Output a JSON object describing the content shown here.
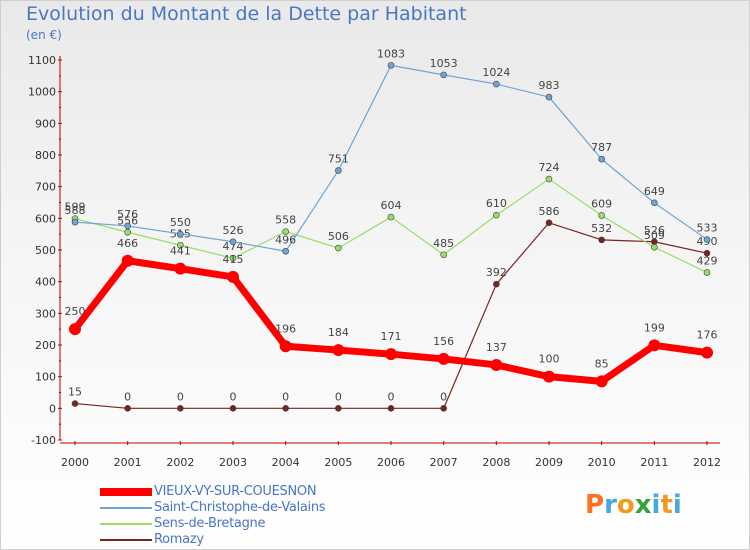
{
  "chart_data": {
    "type": "line",
    "title": "Evolution du Montant de la Dette par Habitant",
    "subtitle": "(en €)",
    "xlabel": "",
    "ylabel": "",
    "x": [
      "2000",
      "2001",
      "2002",
      "2003",
      "2004",
      "2005",
      "2006",
      "2007",
      "2008",
      "2009",
      "2010",
      "2011",
      "2012"
    ],
    "ylim": [
      -100,
      1100
    ],
    "yticks": [
      -100,
      0,
      100,
      200,
      300,
      400,
      500,
      600,
      700,
      800,
      900,
      1000,
      1100
    ],
    "grid": false,
    "legend": "bottom-left",
    "series": [
      {
        "name": "VIEUX-VY-SUR-COUESNON",
        "color": "#ff0000",
        "values": [
          250,
          466,
          441,
          415,
          196,
          184,
          171,
          156,
          137,
          100,
          85,
          199,
          176
        ]
      },
      {
        "name": "Saint-Christophe-de-Valains",
        "color": "#6fa3d6",
        "values": [
          588,
          576,
          null,
          526,
          496,
          751,
          1083,
          1053,
          1024,
          983,
          787,
          649,
          533
        ]
      },
      {
        "name": "Sens-de-Bretagne",
        "color": "#99dd66",
        "values": [
          599,
          556,
          515,
          474,
          558,
          506,
          604,
          485,
          610,
          724,
          609,
          509,
          429
        ]
      },
      {
        "name": "Romazy",
        "color": "#7a2222",
        "values": [
          15,
          0,
          0,
          0,
          0,
          0,
          0,
          0,
          392,
          586,
          532,
          526,
          490
        ]
      }
    ],
    "extra_points": [
      {
        "series": "Saint-Christophe-de-Valains",
        "x": "2002",
        "value": 550
      }
    ]
  },
  "logo": {
    "letters": [
      "P",
      "r",
      "o",
      "x",
      "i",
      "t",
      "i"
    ],
    "colors": [
      "#ff6f1f",
      "#46a8e0",
      "#f39a1e",
      "#35a33a",
      "#46a8e0",
      "#f39a1e",
      "#46a8e0"
    ]
  }
}
